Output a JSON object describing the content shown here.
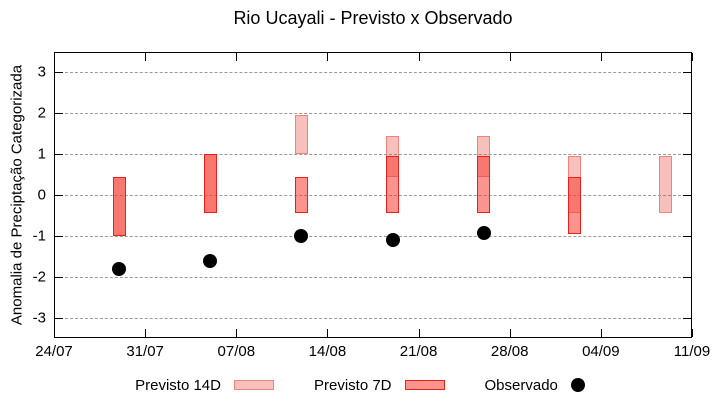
{
  "title": "Rio Ucayali - Previsto x Observado",
  "chart_data": {
    "type": "bar",
    "subtype": "range-bars-with-scatter",
    "title": "Rio Ucayali - Previsto x Observado",
    "xlabel": "",
    "ylabel": "Anomalia de Preciptação Categorizada",
    "ylim": [
      -3.5,
      3.5
    ],
    "yticks": [
      3,
      2,
      1,
      0,
      -1,
      -2,
      -3
    ],
    "grid": "horizontal dotted grey",
    "xlim_days": [
      0,
      49
    ],
    "xtick_days": [
      0,
      7,
      14,
      21,
      28,
      35,
      42,
      49
    ],
    "xtick_labels": [
      "24/07",
      "31/07",
      "07/08",
      "14/08",
      "21/08",
      "28/08",
      "04/09",
      "11/09"
    ],
    "legend_position": "below plot, horizontal",
    "colors": {
      "previsto14d_fill": "rgba(235,75,65,0.35)",
      "previsto14d_border": "#f0847c",
      "previsto7d_fill": "rgba(248,60,50,0.55)",
      "previsto7d_border": "#e8211c",
      "observado": "#000000",
      "gridline": "#9a9a9a",
      "axis": "#000000"
    },
    "series": [
      {
        "name": "Previsto 14D",
        "type": "range-bar",
        "points": [
          {
            "x_day": 5,
            "x_date": "29/07",
            "low": -1.0,
            "high": 0.45
          },
          {
            "x_day": 12,
            "x_date": "05/08",
            "low": -0.45,
            "high": 1.0
          },
          {
            "x_day": 19,
            "x_date": "12/08",
            "low": 1.0,
            "high": 1.95
          },
          {
            "x_day": 26,
            "x_date": "19/08",
            "low": 0.45,
            "high": 1.45
          },
          {
            "x_day": 33,
            "x_date": "26/08",
            "low": 0.45,
            "high": 1.45
          },
          {
            "x_day": 40,
            "x_date": "02/09",
            "low": -0.45,
            "high": 0.95
          },
          {
            "x_day": 47,
            "x_date": "09/09",
            "low": -0.45,
            "high": 0.95
          }
        ]
      },
      {
        "name": "Previsto 7D",
        "type": "range-bar",
        "points": [
          {
            "x_day": 5,
            "x_date": "29/07",
            "low": -1.0,
            "high": 0.45
          },
          {
            "x_day": 12,
            "x_date": "05/08",
            "low": -0.45,
            "high": 1.0
          },
          {
            "x_day": 19,
            "x_date": "12/08",
            "low": -0.45,
            "high": 0.45
          },
          {
            "x_day": 26,
            "x_date": "19/08",
            "low": -0.45,
            "high": 0.95
          },
          {
            "x_day": 33,
            "x_date": "26/08",
            "low": -0.45,
            "high": 0.95
          },
          {
            "x_day": 40,
            "x_date": "02/09",
            "low": -0.95,
            "high": 0.45
          }
        ]
      },
      {
        "name": "Observado",
        "type": "scatter",
        "points": [
          {
            "x_day": 5,
            "x_date": "29/07",
            "value": -1.8
          },
          {
            "x_day": 12,
            "x_date": "05/08",
            "value": -1.62
          },
          {
            "x_day": 19,
            "x_date": "12/08",
            "value": -1.0
          },
          {
            "x_day": 26,
            "x_date": "19/08",
            "value": -1.1
          },
          {
            "x_day": 33,
            "x_date": "26/08",
            "value": -0.93
          }
        ]
      }
    ]
  }
}
